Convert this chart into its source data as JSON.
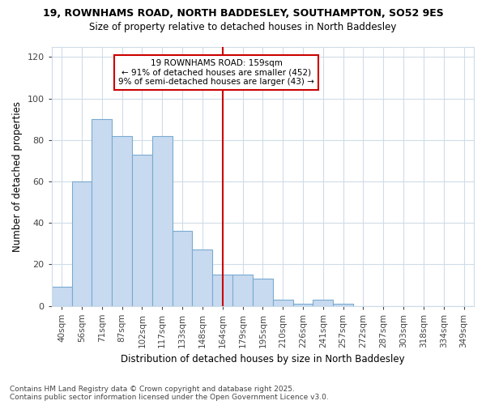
{
  "title1": "19, ROWNHAMS ROAD, NORTH BADDESLEY, SOUTHAMPTON, SO52 9ES",
  "title2": "Size of property relative to detached houses in North Baddesley",
  "xlabel": "Distribution of detached houses by size in North Baddesley",
  "ylabel": "Number of detached properties",
  "bar_labels": [
    "40sqm",
    "56sqm",
    "71sqm",
    "87sqm",
    "102sqm",
    "117sqm",
    "133sqm",
    "148sqm",
    "164sqm",
    "179sqm",
    "195sqm",
    "210sqm",
    "226sqm",
    "241sqm",
    "257sqm",
    "272sqm",
    "287sqm",
    "303sqm",
    "318sqm",
    "334sqm",
    "349sqm"
  ],
  "bar_values": [
    9,
    60,
    90,
    82,
    73,
    82,
    36,
    27,
    15,
    15,
    13,
    3,
    1,
    3,
    1,
    0,
    0,
    0,
    0,
    0,
    0
  ],
  "bar_color": "#c8daf0",
  "bar_edge_color": "#7aaad0",
  "vline_x_index": 8,
  "vline_color": "#cc0000",
  "annotation_line1": "19 ROWNHAMS ROAD: 159sqm",
  "annotation_line2": "← 91% of detached houses are smaller (452)",
  "annotation_line3": "9% of semi-detached houses are larger (43) →",
  "annotation_box_color": "#cc0000",
  "ylim": [
    0,
    125
  ],
  "yticks": [
    0,
    20,
    40,
    60,
    80,
    100,
    120
  ],
  "bg_color": "#ffffff",
  "fig_bg_color": "#ffffff",
  "grid_color": "#d0dce8",
  "footer1": "Contains HM Land Registry data © Crown copyright and database right 2025.",
  "footer2": "Contains public sector information licensed under the Open Government Licence v3.0."
}
